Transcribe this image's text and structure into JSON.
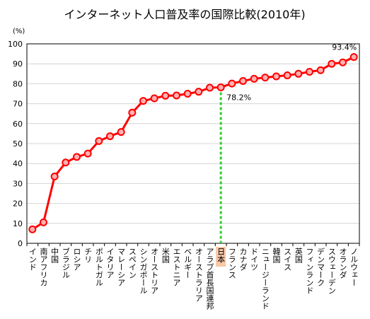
{
  "chart_data": {
    "type": "line",
    "title": "インターネット人口普及率の国際比較(2010年)",
    "ylabel": "(%)",
    "xlabel": "",
    "ylim": [
      0,
      100
    ],
    "yticks": [
      0,
      10,
      20,
      30,
      40,
      50,
      60,
      70,
      80,
      90,
      100
    ],
    "grid": true,
    "categories": [
      "インド",
      "南アフリカ",
      "中国",
      "ブラジル",
      "ロシア",
      "チリ",
      "ポルトガル",
      "イタリア",
      "マレーシア",
      "スペイン",
      "シンガポール",
      "オーストリア",
      "米国",
      "エストニア",
      "ベルギー",
      "オーストラリア",
      "アラブ首長国連邦",
      "日本",
      "フランス",
      "カナダ",
      "ドイツ",
      "ニュージーランド",
      "韓国",
      "スイス",
      "英国",
      "フィンランド",
      "デンマーク",
      "スウェーデン",
      "オランダ",
      "ノルウェー"
    ],
    "series": [
      {
        "values": [
          7.0,
          10.5,
          33.5,
          40.5,
          43.3,
          45.0,
          51.3,
          53.7,
          55.8,
          65.5,
          71.4,
          72.7,
          74.0,
          74.1,
          75.0,
          76.0,
          78.0,
          78.2,
          80.1,
          81.4,
          82.5,
          83.1,
          83.7,
          84.2,
          85.0,
          86.0,
          86.8,
          90.0,
          90.7,
          93.4
        ],
        "color": "#ff0000"
      }
    ],
    "highlight": {
      "category": "日本",
      "color": "#33cc33",
      "label_bg": "#f7c8a5"
    },
    "annotations": [
      {
        "category": "日本",
        "text": "78.2%"
      },
      {
        "category": "ノルウェー",
        "text": "93.4%"
      }
    ]
  }
}
